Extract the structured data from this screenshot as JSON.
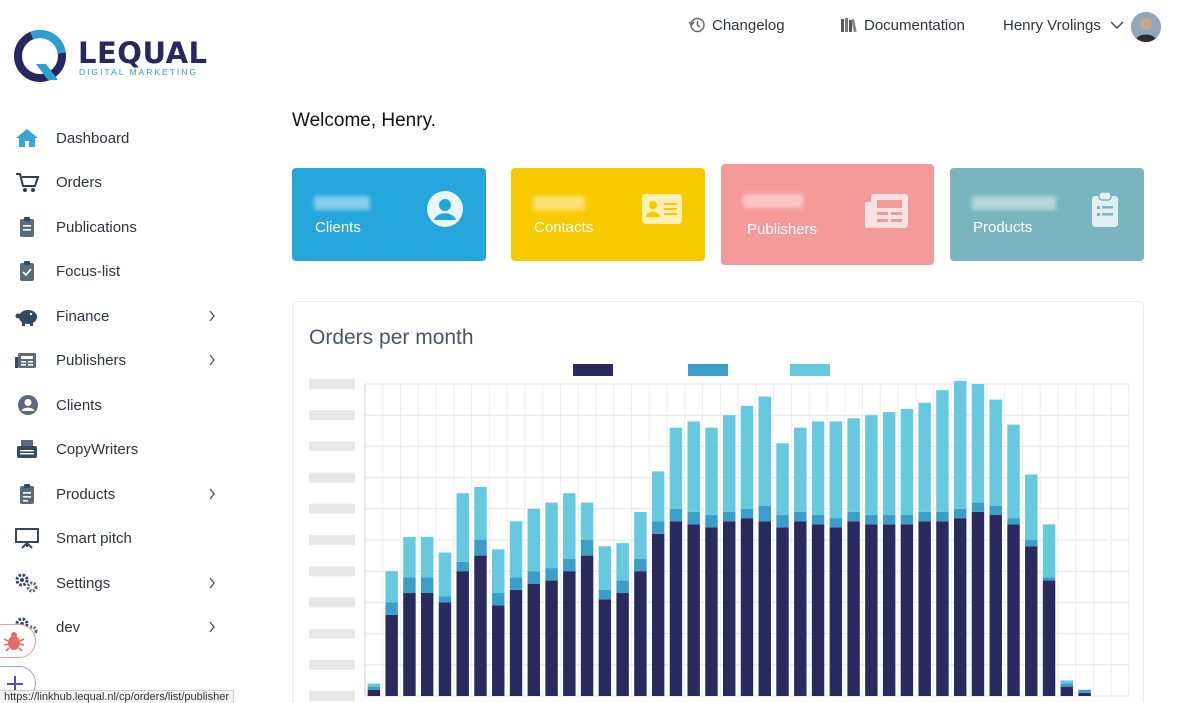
{
  "brand": {
    "name": "LEQUAL",
    "tagline": "DIGITAL MARKETING",
    "colors": {
      "primary": "#26285f",
      "accent": "#2aa1d0"
    }
  },
  "topbar": {
    "changelog_label": "Changelog",
    "documentation_label": "Documentation",
    "user_name": "Henry Vrolings"
  },
  "sidebar": {
    "items": [
      {
        "label": "Dashboard",
        "icon": "home-icon",
        "has_children": false
      },
      {
        "label": "Orders",
        "icon": "cart-icon",
        "has_children": false
      },
      {
        "label": "Publications",
        "icon": "clipboard-icon",
        "has_children": false
      },
      {
        "label": "Focus-list",
        "icon": "clipboard-check-icon",
        "has_children": false
      },
      {
        "label": "Finance",
        "icon": "piggy-bank-icon",
        "has_children": true
      },
      {
        "label": "Publishers",
        "icon": "newspaper-icon",
        "has_children": true
      },
      {
        "label": "Clients",
        "icon": "user-circle-icon",
        "has_children": false
      },
      {
        "label": "CopyWriters",
        "icon": "typewriter-icon",
        "has_children": false
      },
      {
        "label": "Products",
        "icon": "clipboard-list-icon",
        "has_children": true
      },
      {
        "label": "Smart pitch",
        "icon": "presentation-icon",
        "has_children": false
      },
      {
        "label": "Settings",
        "icon": "gears-icon",
        "has_children": true
      },
      {
        "label": "dev",
        "icon": "gears-icon",
        "has_children": true
      }
    ]
  },
  "main": {
    "welcome": "Welcome, Henry."
  },
  "cards": [
    {
      "label": "Clients",
      "color": "#24a6dc",
      "icon": "user-circle-icon"
    },
    {
      "label": "Contacts",
      "color": "#f8cb00",
      "icon": "id-card-icon"
    },
    {
      "label": "Publishers",
      "color": "#f59a9a",
      "icon": "newspaper-icon"
    },
    {
      "label": "Products",
      "color": "#7ab5bf",
      "icon": "clipboard-list-icon"
    }
  ],
  "chart_title": "Orders per month",
  "chart_data": {
    "type": "bar",
    "stacked": true,
    "title": "Orders per month",
    "grid": true,
    "legend_position": "top-center",
    "ylim": [
      0,
      100
    ],
    "series": [
      {
        "color": "#2b2a5e",
        "values": [
          2,
          26,
          33,
          33,
          30,
          40,
          45,
          29,
          34,
          36,
          37,
          40,
          45,
          31,
          33,
          40,
          52,
          56,
          55,
          54,
          56,
          57,
          56,
          54,
          56,
          55,
          54,
          56,
          55,
          55,
          55,
          56,
          56,
          57,
          59,
          58,
          55,
          48,
          37,
          3,
          1,
          0,
          0
        ]
      },
      {
        "color": "#3a9ec8",
        "values": [
          1,
          4,
          5,
          5,
          2,
          3,
          5,
          4,
          4,
          4,
          4,
          4,
          5,
          3,
          4,
          4,
          4,
          4,
          4,
          4,
          3,
          3,
          5,
          4,
          3,
          3,
          3,
          3,
          3,
          3,
          3,
          3,
          3,
          3,
          3,
          3,
          2,
          2,
          1,
          1,
          1,
          0,
          0
        ]
      },
      {
        "color": "#66c9e0",
        "values": [
          1,
          10,
          13,
          13,
          14,
          22,
          17,
          14,
          18,
          20,
          21,
          21,
          12,
          14,
          12,
          15,
          16,
          26,
          29,
          28,
          31,
          33,
          35,
          23,
          27,
          30,
          31,
          30,
          32,
          33,
          34,
          35,
          39,
          41,
          38,
          34,
          30,
          21,
          17,
          1,
          0,
          0,
          0
        ]
      }
    ]
  },
  "status_url": "https://linkhub.lequal.nl/cp/orders/list/publisher"
}
